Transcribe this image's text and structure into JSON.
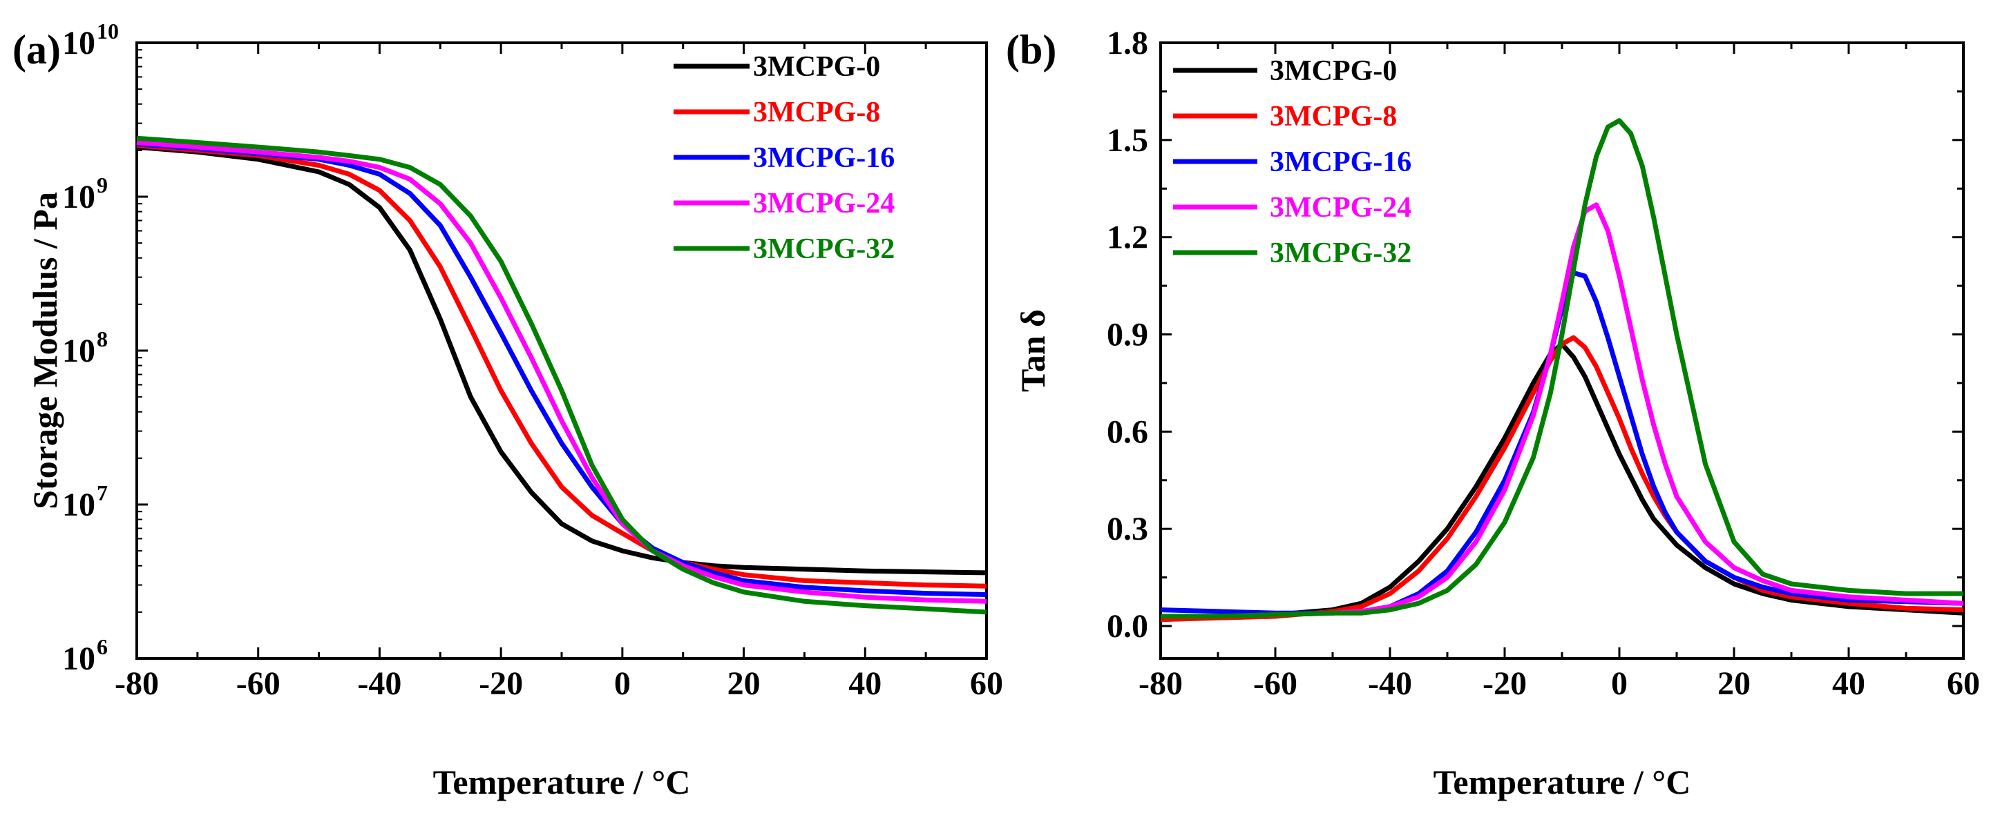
{
  "chart_data": [
    {
      "panel": "(a)",
      "type": "line",
      "title": "",
      "xlabel": "Temperature / °C",
      "ylabel": "Storage Modulus / Pa",
      "yscale": "log",
      "xlim": [
        -80,
        60
      ],
      "ylim_exp": [
        6,
        10
      ],
      "xticks": [
        -80,
        -60,
        -40,
        -20,
        0,
        20,
        40,
        60
      ],
      "xtick_labels": [
        "-80",
        "-60",
        "-40",
        "-20",
        "0",
        "20",
        "40",
        "60"
      ],
      "yticks_exp": [
        6,
        7,
        8,
        9,
        10
      ],
      "ytick_base": "10",
      "ytick_exps": [
        "6",
        "7",
        "8",
        "9",
        "10"
      ],
      "legend_position": "top-right",
      "x": [
        -80,
        -70,
        -60,
        -50,
        -45,
        -40,
        -35,
        -30,
        -25,
        -20,
        -15,
        -10,
        -5,
        0,
        5,
        10,
        15,
        20,
        30,
        40,
        50,
        60
      ],
      "series": [
        {
          "name": "3MCPG-0",
          "color": "#000000",
          "values": [
            2100000000.0,
            1950000000.0,
            1750000000.0,
            1450000000.0,
            1200000000.0,
            850000000.0,
            450000000.0,
            160000000.0,
            50000000.0,
            22000000.0,
            12000000.0,
            7500000.0,
            5800000.0,
            5000000.0,
            4500000.0,
            4200000.0,
            4000000.0,
            3900000.0,
            3800000.0,
            3700000.0,
            3650000.0,
            3600000.0
          ]
        },
        {
          "name": "3MCPG-8",
          "color": "#ff0000",
          "values": [
            2150000000.0,
            2000000000.0,
            1850000000.0,
            1600000000.0,
            1400000000.0,
            1100000000.0,
            700000000.0,
            350000000.0,
            140000000.0,
            55000000.0,
            25000000.0,
            13000000.0,
            8500000.0,
            6500000.0,
            5000000.0,
            4200000.0,
            3800000.0,
            3500000.0,
            3200000.0,
            3100000.0,
            3000000.0,
            2950000.0
          ]
        },
        {
          "name": "3MCPG-16",
          "color": "#0000ff",
          "values": [
            2200000000.0,
            2050000000.0,
            1900000000.0,
            1750000000.0,
            1600000000.0,
            1400000000.0,
            1050000000.0,
            650000000.0,
            300000000.0,
            130000000.0,
            55000000.0,
            25000000.0,
            13000000.0,
            7500000.0,
            5200000.0,
            4200000.0,
            3600000.0,
            3200000.0,
            2900000.0,
            2750000.0,
            2650000.0,
            2600000.0
          ]
        },
        {
          "name": "3MCPG-24",
          "color": "#ff00ff",
          "values": [
            2250000000.0,
            2100000000.0,
            1950000000.0,
            1800000000.0,
            1700000000.0,
            1550000000.0,
            1300000000.0,
            900000000.0,
            500000000.0,
            220000000.0,
            90000000.0,
            35000000.0,
            15000000.0,
            7500000.0,
            5000000.0,
            4000000.0,
            3400000.0,
            3000000.0,
            2700000.0,
            2500000.0,
            2400000.0,
            2350000.0
          ]
        },
        {
          "name": "3MCPG-32",
          "color": "#008000",
          "values": [
            2400000000.0,
            2250000000.0,
            2100000000.0,
            1950000000.0,
            1850000000.0,
            1750000000.0,
            1550000000.0,
            1200000000.0,
            750000000.0,
            380000000.0,
            150000000.0,
            55000000.0,
            18000000.0,
            8000000.0,
            5000000.0,
            3800000.0,
            3100000.0,
            2700000.0,
            2350000.0,
            2200000.0,
            2100000.0,
            2000000.0
          ]
        }
      ]
    },
    {
      "panel": "(b)",
      "type": "line",
      "title": "",
      "xlabel": "Temperature / °C",
      "ylabel": "Tan δ",
      "yscale": "linear",
      "xlim": [
        -80,
        60
      ],
      "ylim": [
        -0.1,
        1.8
      ],
      "xticks": [
        -80,
        -60,
        -40,
        -20,
        0,
        20,
        40,
        60
      ],
      "xtick_labels": [
        "-80",
        "-60",
        "-40",
        "-20",
        "0",
        "20",
        "40",
        "60"
      ],
      "yticks": [
        0.0,
        0.3,
        0.6,
        0.9,
        1.2,
        1.5,
        1.8
      ],
      "ytick_labels": [
        "0.0",
        "0.3",
        "0.6",
        "0.9",
        "1.2",
        "1.5",
        "1.8"
      ],
      "legend_position": "top-left",
      "x": [
        -80,
        -70,
        -60,
        -50,
        -45,
        -40,
        -35,
        -30,
        -25,
        -20,
        -15,
        -12,
        -10,
        -8,
        -6,
        -4,
        -2,
        0,
        2,
        4,
        6,
        8,
        10,
        15,
        20,
        25,
        30,
        40,
        50,
        60
      ],
      "series": [
        {
          "name": "3MCPG-0",
          "color": "#000000",
          "values": [
            0.03,
            0.03,
            0.035,
            0.05,
            0.07,
            0.12,
            0.2,
            0.3,
            0.43,
            0.58,
            0.75,
            0.84,
            0.87,
            0.83,
            0.77,
            0.69,
            0.61,
            0.53,
            0.46,
            0.39,
            0.33,
            0.29,
            0.25,
            0.18,
            0.13,
            0.1,
            0.08,
            0.06,
            0.05,
            0.04
          ]
        },
        {
          "name": "3MCPG-8",
          "color": "#ff0000",
          "values": [
            0.02,
            0.025,
            0.03,
            0.045,
            0.06,
            0.1,
            0.17,
            0.27,
            0.4,
            0.55,
            0.72,
            0.82,
            0.87,
            0.89,
            0.86,
            0.8,
            0.72,
            0.64,
            0.55,
            0.47,
            0.4,
            0.34,
            0.29,
            0.2,
            0.15,
            0.11,
            0.09,
            0.07,
            0.055,
            0.05
          ]
        },
        {
          "name": "3MCPG-16",
          "color": "#0000ff",
          "values": [
            0.05,
            0.045,
            0.04,
            0.04,
            0.045,
            0.06,
            0.1,
            0.17,
            0.29,
            0.45,
            0.66,
            0.84,
            0.98,
            1.09,
            1.08,
            1.0,
            0.89,
            0.77,
            0.65,
            0.53,
            0.43,
            0.35,
            0.29,
            0.2,
            0.15,
            0.12,
            0.1,
            0.08,
            0.075,
            0.07
          ]
        },
        {
          "name": "3MCPG-24",
          "color": "#ff00ff",
          "values": [
            0.03,
            0.03,
            0.035,
            0.04,
            0.045,
            0.06,
            0.09,
            0.15,
            0.26,
            0.42,
            0.65,
            0.84,
            1.0,
            1.17,
            1.28,
            1.3,
            1.22,
            1.08,
            0.92,
            0.76,
            0.62,
            0.5,
            0.4,
            0.26,
            0.18,
            0.14,
            0.11,
            0.09,
            0.08,
            0.07
          ]
        },
        {
          "name": "3MCPG-32",
          "color": "#008000",
          "values": [
            0.03,
            0.03,
            0.035,
            0.04,
            0.04,
            0.05,
            0.07,
            0.11,
            0.19,
            0.32,
            0.52,
            0.72,
            0.9,
            1.1,
            1.3,
            1.45,
            1.54,
            1.56,
            1.52,
            1.42,
            1.26,
            1.08,
            0.9,
            0.5,
            0.26,
            0.16,
            0.13,
            0.11,
            0.1,
            0.1
          ]
        }
      ]
    }
  ]
}
